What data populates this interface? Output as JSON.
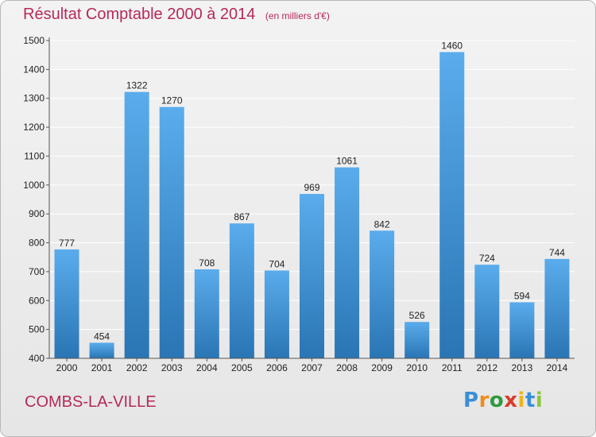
{
  "title": "Résultat Comptable 2000 à 2014",
  "subtitle": "(en milliers d'€)",
  "commune": "COMBS-LA-VILLE",
  "logo": {
    "letters": [
      "P",
      "r",
      "o",
      "x",
      "i",
      "t",
      "i"
    ],
    "colors": [
      "#3a8fd6",
      "#f28c1c",
      "#2e9b3e",
      "#d93b2b",
      "#f2b31c",
      "#3a8fd6",
      "#8cc63f"
    ]
  },
  "colors": {
    "title": "#b52a58",
    "bar_top": "#5aacec",
    "bar_bottom": "#2a75b4",
    "grid": "#ffffff",
    "axis": "#555555",
    "text": "#222222"
  },
  "chart_data": {
    "type": "bar",
    "categories": [
      "2000",
      "2001",
      "2002",
      "2003",
      "2004",
      "2005",
      "2006",
      "2007",
      "2008",
      "2009",
      "2010",
      "2011",
      "2012",
      "2013",
      "2014"
    ],
    "values": [
      777,
      454,
      1322,
      1270,
      708,
      867,
      704,
      969,
      1061,
      842,
      526,
      1460,
      724,
      594,
      744
    ],
    "ylim": [
      400,
      1500
    ],
    "yticks": [
      400,
      500,
      600,
      700,
      800,
      900,
      1000,
      1100,
      1200,
      1300,
      1400,
      1500
    ],
    "grid": true,
    "data_labels": true
  }
}
